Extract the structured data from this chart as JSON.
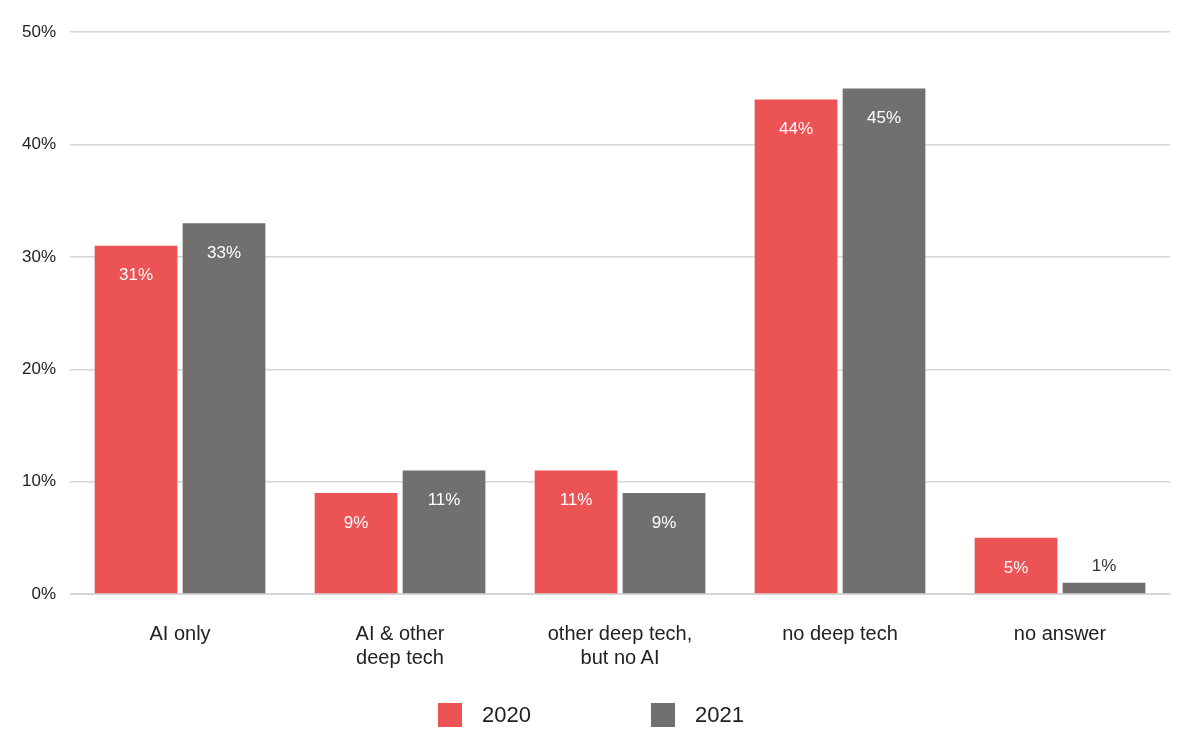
{
  "chart_data": {
    "type": "bar",
    "categories": [
      "AI only",
      "AI & other\ndeep tech",
      "other deep tech,\nbut no AI",
      "no deep tech",
      "no answer"
    ],
    "series": [
      {
        "name": "2020",
        "color": "#ec5354",
        "values": [
          31,
          9,
          11,
          44,
          5
        ],
        "value_labels": [
          "31%",
          "9%",
          "11%",
          "44%",
          "5%"
        ]
      },
      {
        "name": "2021",
        "color": "#72706e",
        "values": [
          33,
          11,
          9,
          45,
          1
        ],
        "value_labels": [
          "33%",
          "11%",
          "9%",
          "45%",
          "1%"
        ]
      }
    ],
    "ylim": [
      0,
      50
    ],
    "yticks": [
      {
        "value": 0,
        "label": "0%"
      },
      {
        "value": 10,
        "label": "10%"
      },
      {
        "value": 20,
        "label": "20%"
      },
      {
        "value": 30,
        "label": "30%"
      },
      {
        "value": 40,
        "label": "40%"
      },
      {
        "value": 50,
        "label": "50%"
      }
    ],
    "grid": "y",
    "legend": "bottom"
  }
}
